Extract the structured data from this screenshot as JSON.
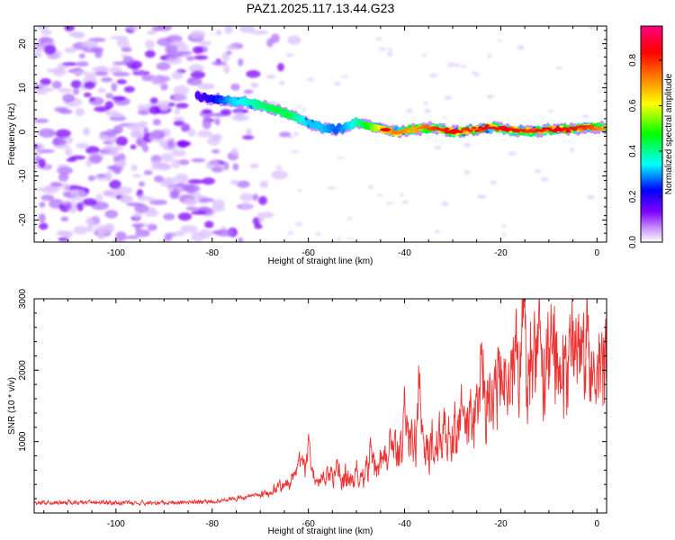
{
  "figure": {
    "title": "PAZ1.2025.117.13.44.G23"
  },
  "chart_data": [
    {
      "type": "heatmap",
      "xlabel": "Height of straight line (km)",
      "ylabel": "Frequency (Hz)",
      "xlim": [
        -117,
        2
      ],
      "ylim": [
        -25,
        24
      ],
      "x_ticks": [
        -100,
        -80,
        -60,
        -40,
        -20,
        0
      ],
      "y_ticks": [
        -20,
        -10,
        0,
        10,
        20
      ],
      "colorbar": {
        "label": "Normalized spectral amplitude",
        "range": [
          0.0,
          0.95
        ],
        "ticks": [
          0.0,
          0.2,
          0.4,
          0.6,
          0.8
        ],
        "colormap": [
          "#ffffff",
          "#cc99ff",
          "#8000ff",
          "#0000ff",
          "#00ffff",
          "#00ff00",
          "#ffff00",
          "#ff8000",
          "#ff0000",
          "#ff0080"
        ]
      },
      "ridge": {
        "x": [
          -83,
          -80,
          -76,
          -72,
          -68,
          -64,
          -60,
          -57,
          -54,
          -50,
          -46,
          -42,
          -38,
          -34,
          -30,
          -26,
          -22,
          -18,
          -14,
          -10,
          -6,
          -2,
          2
        ],
        "frequency": [
          8,
          7.5,
          7,
          6.5,
          5.5,
          4,
          2,
          1,
          0.5,
          2,
          1,
          0,
          0.5,
          1,
          0,
          0.5,
          1,
          0.5,
          0,
          0.5,
          0.5,
          1,
          1
        ],
        "amplitude": [
          0.25,
          0.3,
          0.4,
          0.45,
          0.5,
          0.5,
          0.4,
          0.4,
          0.35,
          0.45,
          0.6,
          0.75,
          0.7,
          0.8,
          0.85,
          0.8,
          0.9,
          0.85,
          0.8,
          0.85,
          0.85,
          0.8,
          0.7
        ]
      },
      "noise_region_x": [
        -117,
        -70
      ]
    },
    {
      "type": "line",
      "xlabel": "Height of straight line (km)",
      "ylabel": "SNR (10 * v/v)",
      "xlim": [
        -117,
        2
      ],
      "ylim": [
        0,
        3000
      ],
      "x_ticks": [
        -100,
        -80,
        -60,
        -40,
        -20,
        0
      ],
      "y_ticks": [
        1000,
        2000,
        3000
      ],
      "color": "#ee3333",
      "envelope": {
        "x": [
          -117,
          -110,
          -100,
          -90,
          -80,
          -75,
          -70,
          -67,
          -64,
          -62,
          -60,
          -58,
          -55,
          -52,
          -50,
          -48,
          -46,
          -44,
          -42,
          -40,
          -38,
          -36,
          -34,
          -32,
          -30,
          -28,
          -26,
          -24,
          -22,
          -20,
          -18,
          -16,
          -15,
          -14,
          -12,
          -10,
          -8,
          -6,
          -4,
          -2,
          0,
          1,
          2
        ],
        "y": [
          150,
          150,
          140,
          140,
          160,
          200,
          260,
          350,
          400,
          700,
          600,
          450,
          550,
          500,
          350,
          600,
          650,
          750,
          800,
          900,
          1050,
          1000,
          900,
          1100,
          1200,
          1150,
          1300,
          1750,
          1600,
          1750,
          1650,
          2100,
          1900,
          2000,
          1950,
          2150,
          2100,
          1950,
          2050,
          2100,
          1800,
          2000,
          2200
        ]
      },
      "peaks": {
        "x": [
          -60,
          -54,
          -50,
          -47,
          -43,
          -40,
          -37,
          -34,
          -31,
          -28,
          -24,
          -20,
          -17,
          -15.2,
          -12,
          -8,
          -5,
          -2,
          0
        ],
        "y": [
          1050,
          800,
          700,
          1050,
          1050,
          1700,
          2100,
          1150,
          1200,
          1900,
          2600,
          2250,
          2500,
          3000,
          2600,
          2450,
          2400,
          2800,
          2200
        ]
      }
    }
  ]
}
